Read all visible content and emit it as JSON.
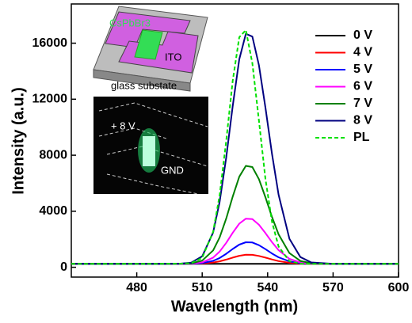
{
  "chart_data": {
    "type": "line",
    "x_label": "Wavelength (nm)",
    "y_label": "Intensity (a.u.)",
    "x": [
      450,
      470,
      490,
      500,
      505,
      510,
      515,
      518,
      521,
      524,
      527,
      530,
      533,
      536,
      539,
      542,
      545,
      550,
      555,
      560,
      570,
      580,
      600
    ],
    "series": [
      {
        "name": "0 V",
        "color": "#000000",
        "values": [
          250,
          250,
          250,
          250,
          250,
          250,
          250,
          250,
          250,
          250,
          250,
          250,
          250,
          250,
          250,
          250,
          250,
          250,
          250,
          250,
          250,
          250,
          250
        ]
      },
      {
        "name": "4 V",
        "color": "#ff0000",
        "values": [
          250,
          250,
          250,
          250,
          253,
          271,
          338,
          424,
          548,
          692,
          823,
          895,
          887,
          807,
          688,
          558,
          444,
          320,
          269,
          254,
          250,
          250,
          250
        ]
      },
      {
        "name": "5 V",
        "color": "#0000ff",
        "values": [
          250,
          250,
          250,
          251,
          258,
          300,
          459,
          664,
          960,
          1304,
          1617,
          1788,
          1769,
          1578,
          1295,
          985,
          712,
          417,
          295,
          259,
          250,
          250,
          250
        ]
      },
      {
        "name": "6 V",
        "color": "#ff00ff",
        "values": [
          250,
          250,
          250,
          252,
          266,
          354,
          689,
          1118,
          1739,
          2460,
          3117,
          3474,
          3435,
          3035,
          2441,
          1791,
          1219,
          601,
          344,
          268,
          250,
          250,
          250
        ]
      },
      {
        "name": "7 V",
        "color": "#008000",
        "values": [
          250,
          250,
          250,
          254,
          285,
          476,
          1202,
          2132,
          3479,
          5044,
          6468,
          7244,
          7159,
          6292,
          5002,
          3592,
          2351,
          1011,
          454,
          289,
          250,
          250,
          250
        ]
      },
      {
        "name": "8 V",
        "color": "#000080",
        "values": [
          250,
          250,
          250,
          260,
          333,
          780,
          2484,
          4669,
          7830,
          11504,
          14847,
          16668,
          16469,
          14433,
          11405,
          8095,
          5182,
          2037,
          730,
          343,
          250,
          250,
          250
        ]
      },
      {
        "name": "PL",
        "color": "#00e000",
        "linestyle": "dashed",
        "values": [
          250,
          250,
          250,
          253,
          301,
          671,
          2525,
          5137,
          9012,
          13309,
          16426,
          16932,
          14573,
          10478,
          6316,
          3249,
          1480,
          435,
          267,
          250,
          250,
          250,
          250
        ]
      }
    ],
    "xlim": [
      450,
      600
    ],
    "xticks": [
      480,
      510,
      540,
      570,
      600
    ],
    "ylim": [
      -700,
      18800
    ],
    "yticks": [
      0,
      4000,
      8000,
      12000,
      16000
    ],
    "legend": "upper right",
    "annotations": {
      "material": "CsPbBr3",
      "electrode": "ITO",
      "substrate": "glass substate",
      "bias": "+ 8 V",
      "ground": "GND"
    }
  }
}
